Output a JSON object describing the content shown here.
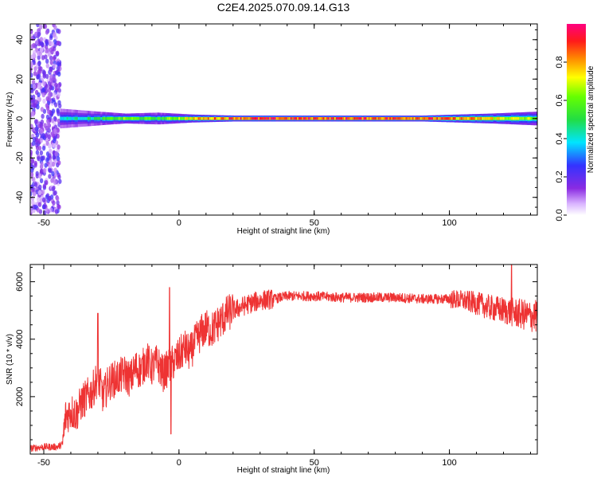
{
  "title": "C2E4.2025.070.09.14.G13",
  "colorbar": {
    "label": "Normalized spectral amplitude",
    "ticks": [
      "0.0",
      "0.2",
      "0.4",
      "0.6",
      "0.8"
    ],
    "tick_values": [
      0.0,
      0.2,
      0.4,
      0.6,
      0.8
    ],
    "range": [
      0,
      1
    ],
    "colormap": "rainbow (white-violet-blue-cyan-green-yellow-orange-red-magenta)"
  },
  "colors": {
    "snr_line": "#ee3333",
    "frame": "#000000",
    "background": "#ffffff"
  },
  "chart_data": [
    {
      "type": "heatmap",
      "title": "",
      "xlabel": "Height of straight line (km)",
      "ylabel": "Frequency (Hz)",
      "xlim": [
        -55,
        132.5
      ],
      "ylim": [
        -49,
        48
      ],
      "xticks": [
        -50,
        0,
        50,
        100
      ],
      "yticks": [
        -40,
        -20,
        0,
        20,
        40
      ],
      "xtick_labels": [
        "-50",
        "0",
        "50",
        "100"
      ],
      "ytick_labels": [
        "-40",
        "-20",
        "0",
        "20",
        "40"
      ],
      "noise_region": {
        "x_range": [
          -55,
          -44
        ],
        "freq_range": [
          -48,
          48
        ],
        "amplitude": [
          0.05,
          0.25
        ]
      },
      "ridge": [
        {
          "x": -44,
          "amplitude": 0.45,
          "spread_hz": 5
        },
        {
          "x": -30,
          "amplitude": 0.55,
          "spread_hz": 3.5
        },
        {
          "x": -20,
          "amplitude": 0.7,
          "spread_hz": 2.5
        },
        {
          "x": -8,
          "amplitude": 0.6,
          "spread_hz": 3
        },
        {
          "x": 5,
          "amplitude": 0.85,
          "spread_hz": 2
        },
        {
          "x": 20,
          "amplitude": 1.0,
          "spread_hz": 1.5
        },
        {
          "x": 90,
          "amplitude": 1.0,
          "spread_hz": 1.5
        },
        {
          "x": 115,
          "amplitude": 0.85,
          "spread_hz": 2.5
        },
        {
          "x": 132.5,
          "amplitude": 0.7,
          "spread_hz": 3.5
        }
      ]
    },
    {
      "type": "line",
      "title": "",
      "xlabel": "Height of straight line (km)",
      "ylabel": "SNR (10 * v/v)",
      "xlim": [
        -55,
        132.5
      ],
      "ylim": [
        0,
        6600
      ],
      "xticks": [
        -50,
        0,
        50,
        100
      ],
      "yticks": [
        2000,
        4000,
        6000
      ],
      "xtick_labels": [
        "-50",
        "0",
        "50",
        "100"
      ],
      "ytick_labels": [
        "2000",
        "4000",
        "6000"
      ],
      "series": [
        {
          "x": [
            -55,
            -50,
            -45,
            -43,
            -42,
            -40,
            -38,
            -36,
            -34,
            -32,
            -30,
            -28,
            -26,
            -24,
            -22,
            -20,
            -18,
            -16,
            -14,
            -12,
            -10,
            -8,
            -6,
            -4,
            -2,
            0,
            2,
            4,
            6,
            8,
            10,
            12,
            15,
            18,
            20,
            25,
            30,
            35,
            40,
            45,
            50,
            60,
            70,
            80,
            90,
            100,
            105,
            110,
            115,
            120,
            125,
            130,
            132.5
          ],
          "y": [
            200,
            250,
            250,
            350,
            1300,
            1500,
            1400,
            1800,
            2000,
            2200,
            2700,
            2000,
            2500,
            2600,
            2700,
            2800,
            2600,
            3000,
            2900,
            3300,
            3000,
            3200,
            2800,
            3000,
            3200,
            3400,
            3700,
            3500,
            3900,
            4200,
            4400,
            4300,
            4600,
            4900,
            5000,
            5200,
            5350,
            5400,
            5500,
            5500,
            5500,
            5450,
            5450,
            5450,
            5400,
            5400,
            5350,
            5250,
            5100,
            5000,
            4900,
            4800,
            4800
          ]
        }
      ],
      "features": [
        {
          "x": -30,
          "y": 4900
        },
        {
          "x": -3.5,
          "y": 5800
        },
        {
          "x": -3,
          "y": 700
        },
        {
          "x": 123,
          "y": 6600
        }
      ]
    }
  ]
}
